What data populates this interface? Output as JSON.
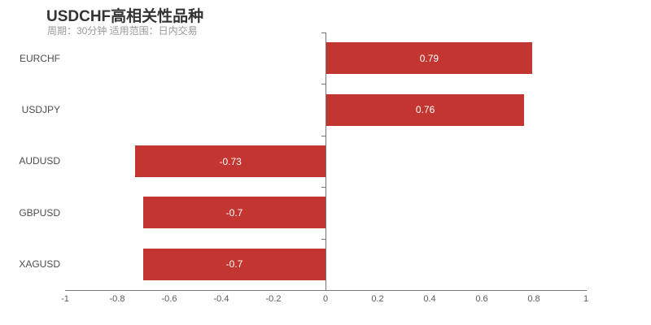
{
  "header": {
    "title": "USDCHF高相关性品种",
    "subtitle": "周期：30分钟 适用范围：日内交易"
  },
  "colors": {
    "bar": "#c23531",
    "title_text": "#333333",
    "subtitle_text": "#999999",
    "axis_line": "#757575",
    "x_tick_label": "#5a5a5a",
    "category_label": "#4d4d4d",
    "value_label": "#ffffff",
    "background": "#ffffff"
  },
  "chart_data": {
    "type": "bar",
    "orientation": "horizontal",
    "title": "USDCHF高相关性品种",
    "subtitle": "周期：30分钟 适用范围：日内交易",
    "categories": [
      "EURCHF",
      "USDJPY",
      "AUDUSD",
      "GBPUSD",
      "XAGUSD"
    ],
    "values": [
      0.79,
      0.76,
      -0.73,
      -0.7,
      -0.7
    ],
    "value_labels": [
      "0.79",
      "0.76",
      "-0.73",
      "-0.7",
      "-0.7"
    ],
    "value_label_position": "inside-center",
    "bar_color": "#c23531",
    "xlim": [
      -1,
      1
    ],
    "x_ticks": [
      -1,
      -0.8,
      -0.6,
      -0.4,
      -0.2,
      0,
      0.2,
      0.4,
      0.6,
      0.8,
      1
    ],
    "x_tick_labels": [
      "-1",
      "-0.8",
      "-0.6",
      "-0.4",
      "-0.2",
      "0",
      "0.2",
      "0.4",
      "0.6",
      "0.8",
      "1"
    ],
    "grid": "off",
    "legend": "none"
  }
}
